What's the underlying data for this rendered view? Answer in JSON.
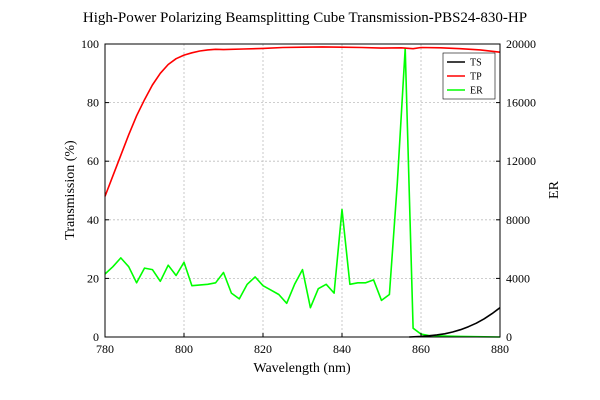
{
  "chart_data": {
    "type": "line",
    "title": "High-Power Polarizing Beamsplitting Cube Transmission-PBS24-830-HP",
    "xlabel": "Wavelength (nm)",
    "ylabel": "Transmission (%)",
    "y2label": "ER",
    "xlim": [
      780,
      880
    ],
    "ylim": [
      0,
      100
    ],
    "y2lim": [
      0,
      20000
    ],
    "xticks": [
      "780",
      "800",
      "820",
      "840",
      "860",
      "880"
    ],
    "yticks": [
      "0",
      "20",
      "40",
      "60",
      "80",
      "100"
    ],
    "y2ticks": [
      "0",
      "4000",
      "8000",
      "12000",
      "16000",
      "20000"
    ],
    "grid": true,
    "legend_position": "top-right",
    "series": [
      {
        "name": "TS",
        "axis": "left",
        "color": "#000000",
        "x": [
          857,
          860,
          862,
          864,
          866,
          868,
          870,
          872,
          874,
          876,
          878,
          880
        ],
        "y": [
          0,
          0.2,
          0.4,
          0.7,
          1.1,
          1.7,
          2.5,
          3.5,
          4.7,
          6.2,
          8.0,
          10.0
        ]
      },
      {
        "name": "TP",
        "axis": "left",
        "color": "#ff0000",
        "x": [
          780,
          782,
          784,
          786,
          788,
          790,
          792,
          794,
          796,
          798,
          800,
          802,
          804,
          806,
          808,
          810,
          815,
          820,
          825,
          830,
          835,
          840,
          845,
          850,
          855,
          858,
          860,
          865,
          870,
          875,
          880
        ],
        "y": [
          48,
          55,
          62,
          69,
          75.5,
          81,
          86,
          90,
          93,
          95,
          96.2,
          97,
          97.6,
          98,
          98.2,
          98.1,
          98.3,
          98.5,
          98.8,
          98.9,
          99,
          98.9,
          98.8,
          98.6,
          98.7,
          98.4,
          98.8,
          98.7,
          98.4,
          98,
          97.2
        ]
      },
      {
        "name": "ER",
        "axis": "right",
        "color": "#00ff00",
        "x": [
          780,
          782,
          784,
          786,
          788,
          790,
          792,
          794,
          796,
          798,
          800,
          802,
          806,
          808,
          810,
          812,
          814,
          816,
          818,
          820,
          822,
          824,
          826,
          828,
          830,
          832,
          834,
          836,
          838,
          840,
          842,
          844,
          846,
          848,
          850,
          852,
          854,
          856,
          858,
          860,
          862,
          866,
          870,
          874,
          880
        ],
        "y": [
          4300,
          4800,
          5400,
          4800,
          3700,
          4700,
          4600,
          3800,
          4900,
          4200,
          5100,
          3500,
          3600,
          3700,
          4400,
          3000,
          2600,
          3600,
          4100,
          3500,
          3200,
          2900,
          2300,
          3600,
          4600,
          2000,
          3300,
          3600,
          3000,
          8700,
          3600,
          3700,
          3700,
          3900,
          2500,
          2900,
          10500,
          19700,
          600,
          200,
          100,
          60,
          40,
          20,
          0
        ]
      }
    ]
  }
}
